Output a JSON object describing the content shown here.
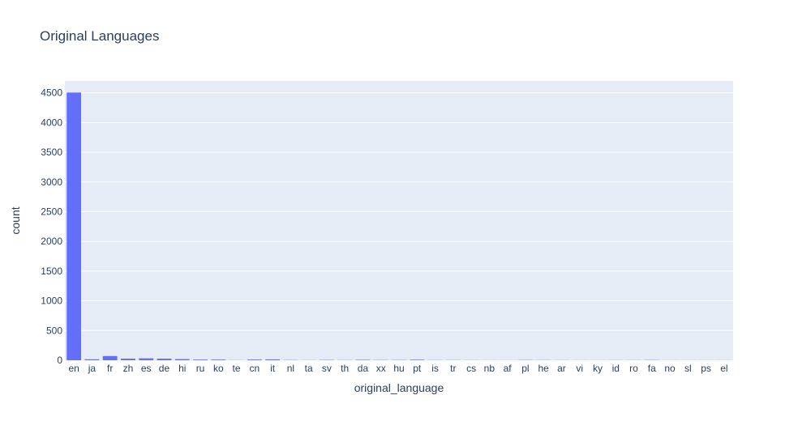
{
  "chart_data": {
    "type": "bar",
    "title": "Original Languages",
    "xlabel": "original_language",
    "ylabel": "count",
    "ylim": [
      0,
      4700
    ],
    "yticks": [
      0,
      500,
      1000,
      1500,
      2000,
      2500,
      3000,
      3500,
      4000,
      4500
    ],
    "grid": true,
    "categories": [
      "en",
      "ja",
      "fr",
      "zh",
      "es",
      "de",
      "hi",
      "ru",
      "ko",
      "te",
      "cn",
      "it",
      "nl",
      "ta",
      "sv",
      "th",
      "da",
      "xx",
      "hu",
      "pt",
      "is",
      "tr",
      "cs",
      "nb",
      "af",
      "pl",
      "he",
      "ar",
      "vi",
      "ky",
      "id",
      "ro",
      "fa",
      "no",
      "sl",
      "ps",
      "el"
    ],
    "values": [
      4505,
      16,
      70,
      27,
      32,
      27,
      19,
      11,
      11,
      2,
      12,
      14,
      4,
      2,
      5,
      3,
      7,
      4,
      4,
      9,
      3,
      3,
      2,
      1,
      1,
      4,
      3,
      2,
      1,
      1,
      2,
      2,
      4,
      1,
      1,
      1,
      1
    ],
    "colors": {
      "bar": "#636efa",
      "plot_bg": "#e5ecf6",
      "grid": "#ffffff",
      "text": "#2a3f5f"
    }
  }
}
